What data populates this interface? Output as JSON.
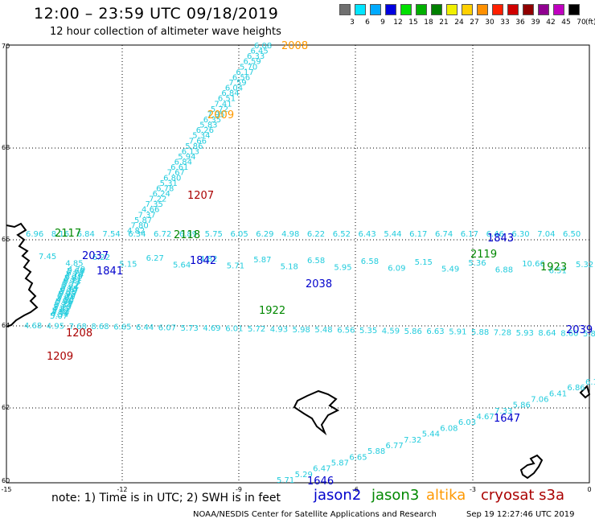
{
  "title": "12:00 – 23:59 UTC 09/18/2019",
  "subtitle": "12 hour collection of altimeter wave heights",
  "colorbar": {
    "labels": [
      "3",
      "6",
      "9",
      "12",
      "15",
      "18",
      "21",
      "24",
      "27",
      "30",
      "33",
      "36",
      "39",
      "42",
      "45",
      "70"
    ],
    "unit": "(ft)",
    "colors": [
      "#707070",
      "#00e5ff",
      "#00aaff",
      "#0000e0",
      "#00e000",
      "#00b000",
      "#008000",
      "#f0f000",
      "#ffd000",
      "#ff9000",
      "#ff2000",
      "#d00000",
      "#900000",
      "#900090",
      "#c000c0",
      "#000000"
    ]
  },
  "axes": {
    "lon_ticks": [
      "-15",
      "-12",
      "-9",
      "-6",
      "-3",
      "0"
    ],
    "lat_ticks": [
      "70",
      "68",
      "66",
      "64",
      "62",
      "60"
    ]
  },
  "colors": {
    "swh": "#22ccdd",
    "jason2": "#0000cc",
    "jason3": "#008800",
    "altika": "#ff9900",
    "cryosat": "#aa0000"
  },
  "tracks": [
    {
      "label": "2008",
      "sat": "altika"
    },
    {
      "label": "2009",
      "sat": "altika"
    },
    {
      "label": "1207",
      "sat": "cryosat"
    },
    {
      "label": "2117",
      "sat": "jason3"
    },
    {
      "label": "2118",
      "sat": "jason3"
    },
    {
      "label": "1843",
      "sat": "jason2"
    },
    {
      "label": "2037",
      "sat": "jason2"
    },
    {
      "label": "1841",
      "sat": "jason2"
    },
    {
      "label": "1842",
      "sat": "jason2"
    },
    {
      "label": "2038",
      "sat": "jason2"
    },
    {
      "label": "2119",
      "sat": "jason3"
    },
    {
      "label": "1923",
      "sat": "jason3"
    },
    {
      "label": "1922",
      "sat": "jason3"
    },
    {
      "label": "1208",
      "sat": "cryosat"
    },
    {
      "label": "1209",
      "sat": "cryosat"
    },
    {
      "label": "2039",
      "sat": "jason2"
    },
    {
      "label": "1647",
      "sat": "jason2"
    },
    {
      "label": "1646",
      "sat": "jason2"
    }
  ],
  "swh_values": {
    "track_2008": [
      "6.08",
      "6.45",
      "6.33",
      "6.59",
      "5.70",
      "6.17",
      "6.56",
      "7.59",
      "6.04",
      "6.84",
      "6.51",
      "7.41",
      "5.72",
      "7.95",
      "6.35",
      "5.83",
      "6.26",
      "5.34",
      "7.66",
      "5.86",
      "6.13",
      "5.94",
      "6.84",
      "6.61",
      "7.67",
      "6.80",
      "5.31",
      "6.78",
      "6.24",
      "7.22",
      "7.35",
      "4.66",
      "7.37",
      "5.87",
      "7.80",
      "4.82"
    ],
    "row_66": [
      "6.96",
      "8.16",
      "6.84",
      "7.54",
      "6.34",
      "6.72",
      "6.89",
      "5.75",
      "6.05",
      "6.29",
      "4.98",
      "6.22",
      "6.52",
      "6.43",
      "5.44",
      "6.17",
      "6.74",
      "6.17",
      "6.46",
      "6.30",
      "7.04",
      "6.50"
    ],
    "row_65": [
      "7.45",
      "4.85",
      "6.22",
      "5.15",
      "6.27",
      "5.64",
      "4.82",
      "5.71",
      "5.87",
      "5.18",
      "6.58",
      "5.95",
      "6.58",
      "6.09",
      "5.15",
      "5.49",
      "5.36",
      "6.88",
      "10.66",
      "6.51",
      "5.32"
    ],
    "row_64b": [
      "4.79",
      "5.68",
      "6.72",
      "7.10",
      "6.19",
      "5.81",
      "6.11",
      "5.73",
      "5.77",
      "5.72",
      "5.84",
      "6.15",
      "5.79",
      "6.55",
      "5.95",
      "5.30",
      "5.84",
      "4.56",
      "5.86",
      "5.29",
      "5.34",
      "5.10",
      "4.82",
      "5.62",
      "4.50",
      "4.54",
      "5.07"
    ],
    "row_63": [
      "4.68",
      "4.95",
      "7.68",
      "8.68",
      "6.65",
      "6.44",
      "6.07",
      "5.73",
      "4.69",
      "6.01",
      "5.72",
      "4.93",
      "5.98",
      "5.48",
      "6.56",
      "5.35",
      "4.59",
      "5.86",
      "6.63",
      "5.91",
      "5.88",
      "7.28",
      "5.93",
      "8.64",
      "8.60",
      "5.87"
    ],
    "row_61": [
      "5.71",
      "5.29",
      "6.47",
      "5.87",
      "6.65",
      "5.88",
      "6.77",
      "7.32",
      "5.44",
      "6.08",
      "6.03",
      "4.67",
      "7.33",
      "5.86",
      "7.06",
      "6.41",
      "6.86",
      "6.17"
    ]
  },
  "note": "note:  1) Time is in UTC;  2) SWH is in feet",
  "legend": [
    {
      "name": "jason2",
      "color": "#0000cc"
    },
    {
      "name": "jason3",
      "color": "#008800"
    },
    {
      "name": "altika",
      "color": "#ff9900"
    },
    {
      "name": "cryosat s3a",
      "color": "#aa0000"
    }
  ],
  "credit": "NOAA/NESDIS Center for Satellite Applications and Research",
  "timestamp": "Sep 19 12:27:46 UTC 2019"
}
